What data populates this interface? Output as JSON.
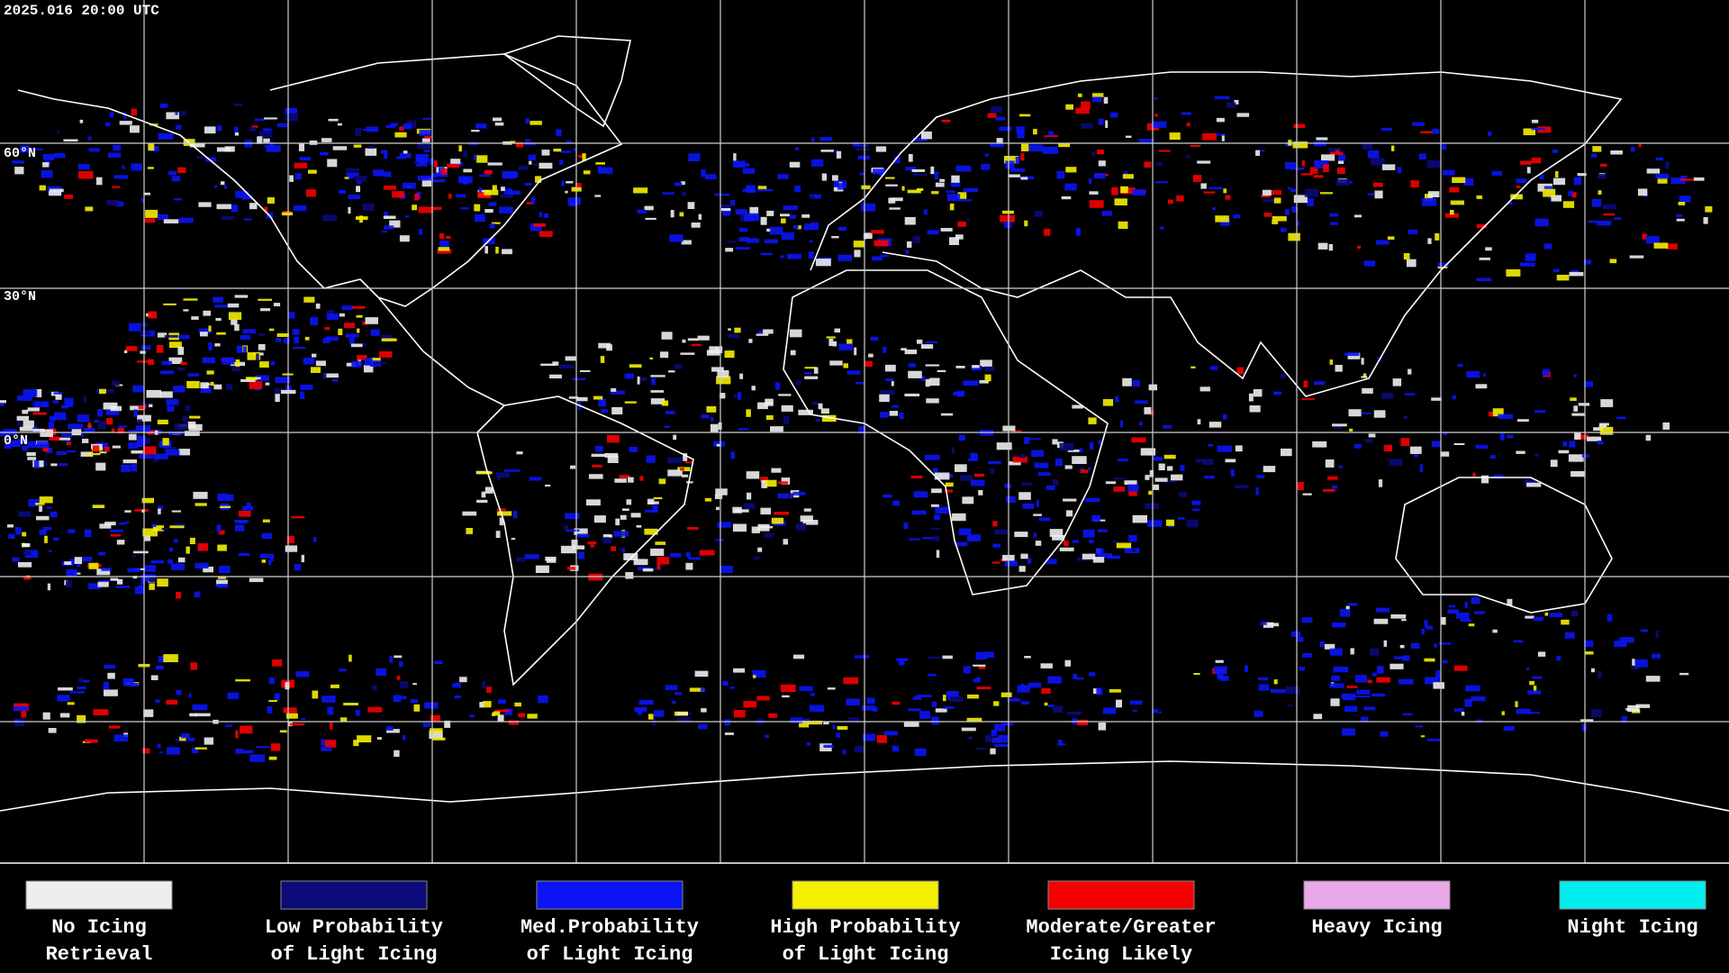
{
  "header": {
    "timestamp": "2025.016 20:00 UTC"
  },
  "map": {
    "latitude_labels": [
      "60°N",
      "30°N",
      "0°N"
    ]
  },
  "legend": {
    "items": [
      {
        "color": "#eeeeee",
        "lines": [
          "No Icing",
          "Retrieval"
        ]
      },
      {
        "color": "#0a0a78",
        "lines": [
          "Low Probability",
          "of Light Icing"
        ]
      },
      {
        "color": "#0a14f5",
        "lines": [
          "Med.Probability",
          "of Light Icing"
        ]
      },
      {
        "color": "#f5f000",
        "lines": [
          "High Probability",
          "of Light Icing"
        ]
      },
      {
        "color": "#f50000",
        "lines": [
          "Moderate/Greater",
          "Icing Likely"
        ]
      },
      {
        "color": "#e8a8e8",
        "lines": [
          "Heavy Icing",
          ""
        ]
      },
      {
        "color": "#00eef0",
        "lines": [
          "Night Icing",
          ""
        ]
      }
    ]
  }
}
